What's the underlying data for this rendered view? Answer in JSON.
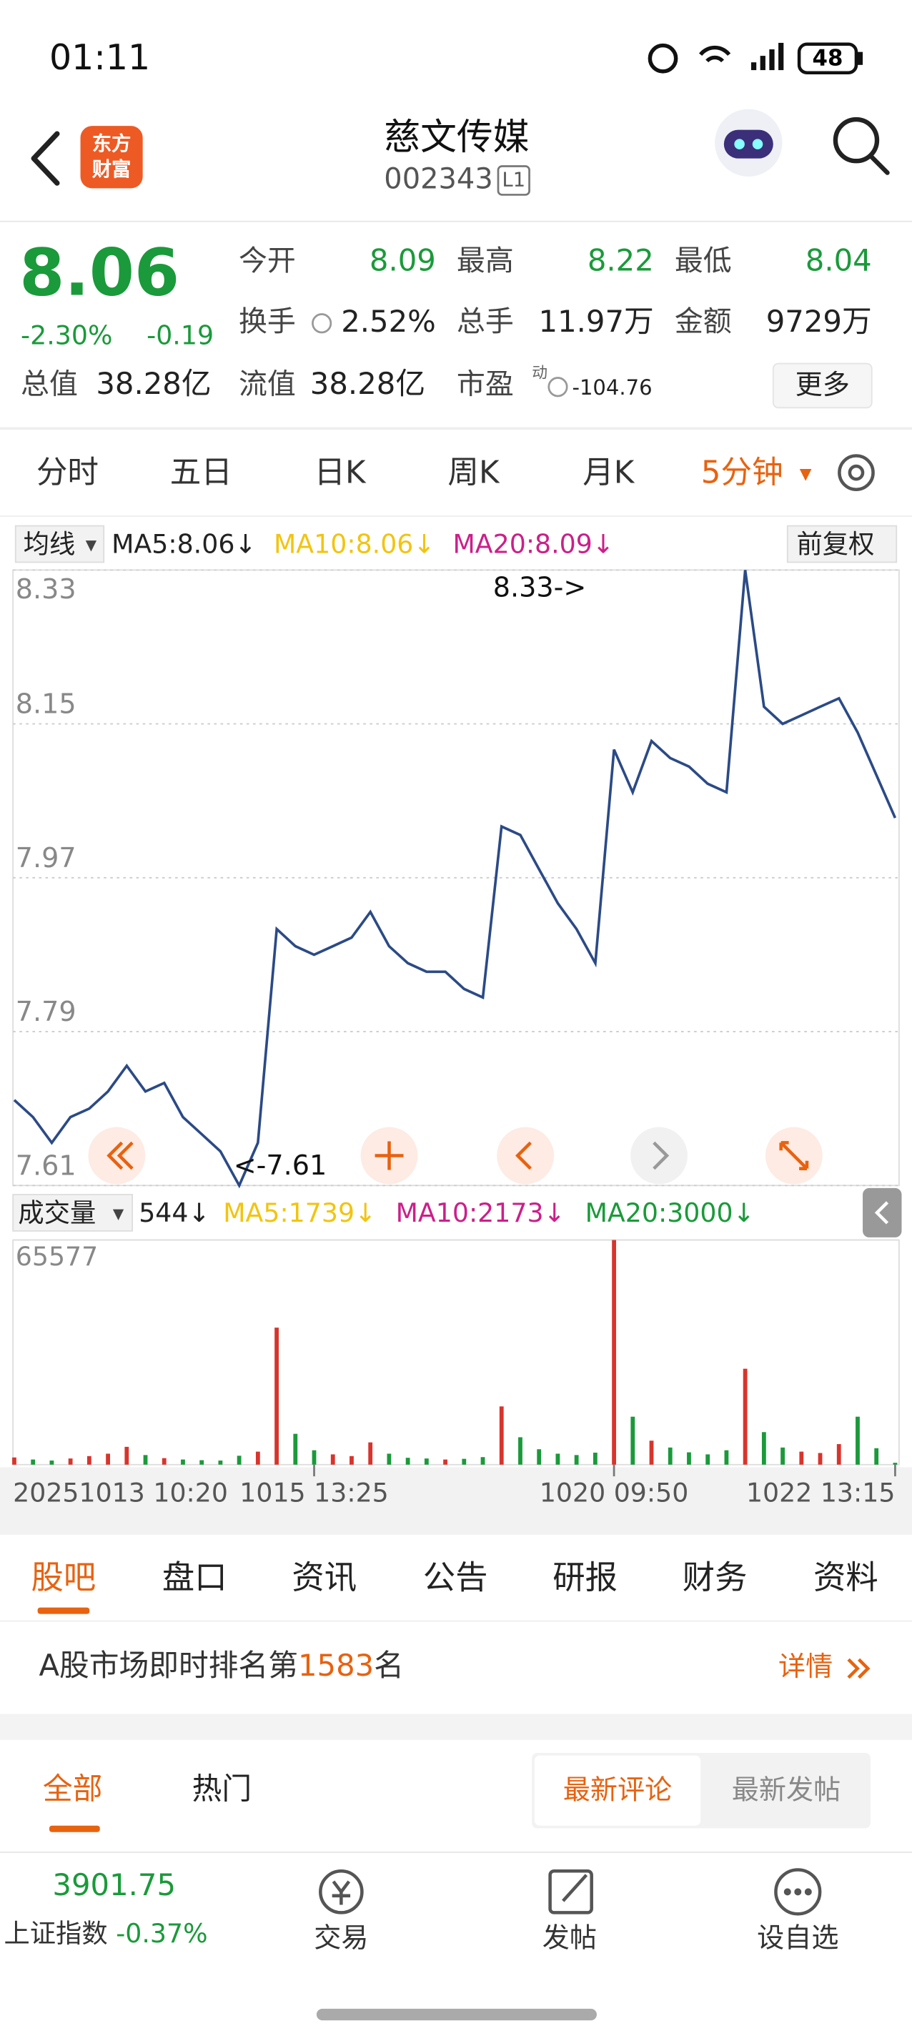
{
  "status_bar": {
    "time": "01:11",
    "battery": "48"
  },
  "header": {
    "logo": [
      "东方",
      "财富"
    ],
    "title": "慈文传媒",
    "code": "002343",
    "level": "L1"
  },
  "quote": {
    "price": "8.06",
    "change_pct": "-2.30%",
    "change": "-0.19",
    "fields": [
      {
        "label": "今开",
        "value": "8.09"
      },
      {
        "label": "最高",
        "value": "8.22"
      },
      {
        "label": "最低",
        "value": "8.04"
      },
      {
        "label": "换手",
        "value": "2.52%"
      },
      {
        "label": "总手",
        "value": "11.97万"
      },
      {
        "label": "金额",
        "value": "9729万"
      },
      {
        "label": "总值",
        "value": "38.28亿"
      },
      {
        "label": "流值",
        "value": "38.28亿"
      },
      {
        "label": "市盈",
        "sup": "动",
        "value": "-104.76"
      }
    ],
    "more": "更多"
  },
  "period_tabs": [
    "分时",
    "五日",
    "日K",
    "周K",
    "月K",
    "5分钟"
  ],
  "chart_data": [
    {
      "type": "line",
      "indicator": "均线",
      "legend_texts": [
        "MA5:8.06↓",
        "MA10:8.06↓",
        "MA20:8.09↓"
      ],
      "legend_colors": [
        "#222222",
        "#f2c40f",
        "#cc1f8a"
      ],
      "adjust": "前复权",
      "annotations": [
        "8.33->",
        "<-7.61"
      ],
      "color": "#2b4a86",
      "ylim": [
        7.61,
        8.33
      ],
      "yticks": [
        8.33,
        8.15,
        7.97,
        7.79,
        7.61
      ],
      "grid": true,
      "categories": [
        "20251013 10:20",
        null,
        null,
        null,
        null,
        null,
        null,
        null,
        null,
        null,
        null,
        null,
        null,
        null,
        null,
        null,
        "1015 13:25",
        null,
        null,
        null,
        null,
        null,
        null,
        null,
        null,
        null,
        null,
        null,
        null,
        null,
        null,
        null,
        "1020 09:50",
        null,
        null,
        null,
        null,
        null,
        null,
        null,
        null,
        null,
        null,
        null,
        null,
        null,
        null,
        "1022 13:15"
      ],
      "values": [
        7.71,
        7.69,
        7.66,
        7.69,
        7.7,
        7.72,
        7.75,
        7.72,
        7.73,
        7.69,
        7.67,
        7.65,
        7.61,
        7.66,
        7.91,
        7.89,
        7.88,
        7.89,
        7.9,
        7.93,
        7.89,
        7.87,
        7.86,
        7.86,
        7.84,
        7.83,
        8.03,
        8.02,
        7.98,
        7.94,
        7.91,
        7.87,
        8.12,
        8.07,
        8.13,
        8.11,
        8.1,
        8.08,
        8.07,
        8.33,
        8.17,
        8.15,
        8.16,
        8.17,
        8.18,
        8.14,
        8.09,
        8.04
      ]
    },
    {
      "type": "bar",
      "indicator": "成交量",
      "legend_texts": [
        "544↓",
        "MA5:1739↓",
        "MA10:2173↓",
        "MA20:3000↓"
      ],
      "legend_colors": [
        "#222222",
        "#f2c40f",
        "#cc1f8a",
        "#1a9a3a"
      ],
      "up_color": "#d8342c",
      "down_color": "#1a9a3a",
      "ylim": [
        0,
        65577
      ],
      "yticks": [
        65577
      ],
      "values": [
        2100,
        1500,
        1200,
        1800,
        2500,
        3200,
        5200,
        2800,
        1900,
        1500,
        1300,
        1200,
        2600,
        3800,
        40000,
        9000,
        4200,
        3000,
        2500,
        6500,
        3200,
        2000,
        1800,
        1500,
        1700,
        2200,
        17000,
        8000,
        4500,
        3200,
        2800,
        3500,
        65577,
        14000,
        7000,
        5000,
        3600,
        3000,
        4200,
        28000,
        9500,
        5000,
        3800,
        3400,
        6000,
        14000,
        4800,
        544
      ]
    }
  ],
  "content_tabs": [
    "股吧",
    "盘口",
    "资讯",
    "公告",
    "研报",
    "财务",
    "资料"
  ],
  "ranking": {
    "prefix": "A股市场即时排名第",
    "rank": "1583",
    "suffix": "名",
    "details": "详情"
  },
  "filter": {
    "tabs": [
      "全部",
      "热门"
    ],
    "sort": [
      "最新评论",
      "最新发帖"
    ]
  },
  "bottom_bar": {
    "index_value": "3901.75",
    "index_name": "上证指数",
    "index_change": "-0.37%",
    "buttons": [
      "交易",
      "发帖",
      "设自选"
    ]
  }
}
